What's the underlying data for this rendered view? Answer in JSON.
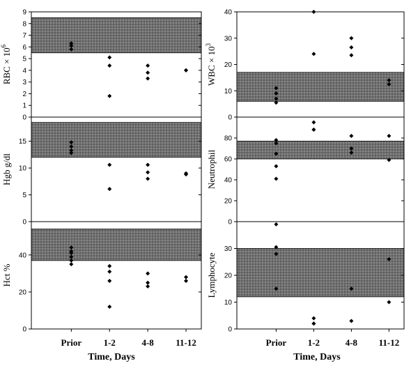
{
  "chart_data": [
    {
      "type": "scatter",
      "panel": "left-top",
      "ylabel": "RBC × 10",
      "ylabel_sup": "6",
      "ylim": [
        0,
        9
      ],
      "yticks": [
        "0",
        "1",
        "2",
        "3",
        "4",
        "5",
        "6",
        "7",
        "8",
        "9"
      ],
      "normal_range": [
        5.5,
        8.5
      ],
      "categories": [
        "Prior",
        "1-2",
        "4-8",
        "11-12"
      ],
      "points": [
        {
          "x": "Prior",
          "y": 6.3
        },
        {
          "x": "Prior",
          "y": 6.1
        },
        {
          "x": "Prior",
          "y": 5.8
        },
        {
          "x": "1-2",
          "y": 5.1
        },
        {
          "x": "1-2",
          "y": 4.4
        },
        {
          "x": "1-2",
          "y": 1.8
        },
        {
          "x": "4-8",
          "y": 4.4
        },
        {
          "x": "4-8",
          "y": 3.8
        },
        {
          "x": "4-8",
          "y": 3.3
        },
        {
          "x": "11-12",
          "y": 4.0
        },
        {
          "x": "11-12",
          "y": 4.0
        }
      ]
    },
    {
      "type": "scatter",
      "panel": "left-middle",
      "ylabel": "Hgb g/dl",
      "ylim": [
        0,
        19.5
      ],
      "yticks": [
        "0",
        "5",
        "10",
        "15"
      ],
      "normal_range": [
        12,
        18.5
      ],
      "categories": [
        "Prior",
        "1-2",
        "4-8",
        "11-12"
      ],
      "points": [
        {
          "x": "Prior",
          "y": 14.8
        },
        {
          "x": "Prior",
          "y": 14.0
        },
        {
          "x": "Prior",
          "y": 13.3
        },
        {
          "x": "Prior",
          "y": 12.8
        },
        {
          "x": "1-2",
          "y": 10.6
        },
        {
          "x": "1-2",
          "y": 6.1
        },
        {
          "x": "4-8",
          "y": 10.6
        },
        {
          "x": "4-8",
          "y": 9.2
        },
        {
          "x": "4-8",
          "y": 8.0
        },
        {
          "x": "11-12",
          "y": 9.0
        },
        {
          "x": "11-12",
          "y": 8.8
        }
      ]
    },
    {
      "type": "scatter",
      "panel": "left-bottom",
      "ylabel": "Hct %",
      "ylim": [
        0,
        58
      ],
      "yticks": [
        "0",
        "20",
        "40"
      ],
      "normal_range": [
        37,
        54
      ],
      "categories": [
        "Prior",
        "1-2",
        "4-8",
        "11-12"
      ],
      "points": [
        {
          "x": "Prior",
          "y": 44
        },
        {
          "x": "Prior",
          "y": 42
        },
        {
          "x": "Prior",
          "y": 41
        },
        {
          "x": "Prior",
          "y": 39
        },
        {
          "x": "Prior",
          "y": 37
        },
        {
          "x": "Prior",
          "y": 35
        },
        {
          "x": "1-2",
          "y": 34
        },
        {
          "x": "1-2",
          "y": 31
        },
        {
          "x": "1-2",
          "y": 26
        },
        {
          "x": "1-2",
          "y": 12
        },
        {
          "x": "4-8",
          "y": 30
        },
        {
          "x": "4-8",
          "y": 25
        },
        {
          "x": "4-8",
          "y": 23
        },
        {
          "x": "11-12",
          "y": 28
        },
        {
          "x": "11-12",
          "y": 26
        }
      ]
    },
    {
      "type": "scatter",
      "panel": "right-top",
      "ylabel": "WBC × 10",
      "ylabel_sup": "3",
      "ylim": [
        0,
        40
      ],
      "yticks": [
        "0",
        "10",
        "20",
        "30",
        "40"
      ],
      "normal_range": [
        6,
        17
      ],
      "categories": [
        "Prior",
        "1-2",
        "4-8",
        "11-12"
      ],
      "points": [
        {
          "x": "Prior",
          "y": 11
        },
        {
          "x": "Prior",
          "y": 9
        },
        {
          "x": "Prior",
          "y": 7
        },
        {
          "x": "Prior",
          "y": 5.5
        },
        {
          "x": "1-2",
          "y": 40
        },
        {
          "x": "1-2",
          "y": 24
        },
        {
          "x": "4-8",
          "y": 30
        },
        {
          "x": "4-8",
          "y": 26.5
        },
        {
          "x": "4-8",
          "y": 23.5
        },
        {
          "x": "11-12",
          "y": 14
        },
        {
          "x": "11-12",
          "y": 12.5
        }
      ]
    },
    {
      "type": "scatter",
      "panel": "right-middle",
      "ylabel": "Neutrophil",
      "ylim": [
        0,
        100
      ],
      "yticks": [
        "0",
        "20",
        "40",
        "60",
        "80"
      ],
      "normal_range": [
        60,
        77
      ],
      "categories": [
        "Prior",
        "1-2",
        "4-8",
        "11-12"
      ],
      "points": [
        {
          "x": "Prior",
          "y": 78
        },
        {
          "x": "Prior",
          "y": 75
        },
        {
          "x": "Prior",
          "y": 65
        },
        {
          "x": "Prior",
          "y": 53
        },
        {
          "x": "Prior",
          "y": 41
        },
        {
          "x": "1-2",
          "y": 95
        },
        {
          "x": "1-2",
          "y": 88
        },
        {
          "x": "1-2",
          "y": 88
        },
        {
          "x": "4-8",
          "y": 82
        },
        {
          "x": "4-8",
          "y": 70
        },
        {
          "x": "4-8",
          "y": 66
        },
        {
          "x": "11-12",
          "y": 82
        },
        {
          "x": "11-12",
          "y": 59
        }
      ]
    },
    {
      "type": "scatter",
      "panel": "right-bottom",
      "ylabel": "Lymphocyte",
      "ylim": [
        0,
        40
      ],
      "yticks": [
        "0",
        "10",
        "20",
        "30"
      ],
      "normal_range": [
        12,
        30
      ],
      "categories": [
        "Prior",
        "1-2",
        "4-8",
        "11-12"
      ],
      "points": [
        {
          "x": "Prior",
          "y": 39
        },
        {
          "x": "Prior",
          "y": 30.5
        },
        {
          "x": "Prior",
          "y": 28
        },
        {
          "x": "Prior",
          "y": 15
        },
        {
          "x": "1-2",
          "y": 4
        },
        {
          "x": "1-2",
          "y": 2
        },
        {
          "x": "1-2",
          "y": 2
        },
        {
          "x": "4-8",
          "y": 15
        },
        {
          "x": "4-8",
          "y": 3
        },
        {
          "x": "11-12",
          "y": 26
        },
        {
          "x": "11-12",
          "y": 10
        }
      ]
    }
  ],
  "left_xlabel": "Time, Days",
  "right_xlabel": "Time, Days",
  "categories": [
    "Prior",
    "1-2",
    "4-8",
    "11-12"
  ],
  "colors": {
    "band": "#7a7a7a",
    "marker": "#000000"
  }
}
